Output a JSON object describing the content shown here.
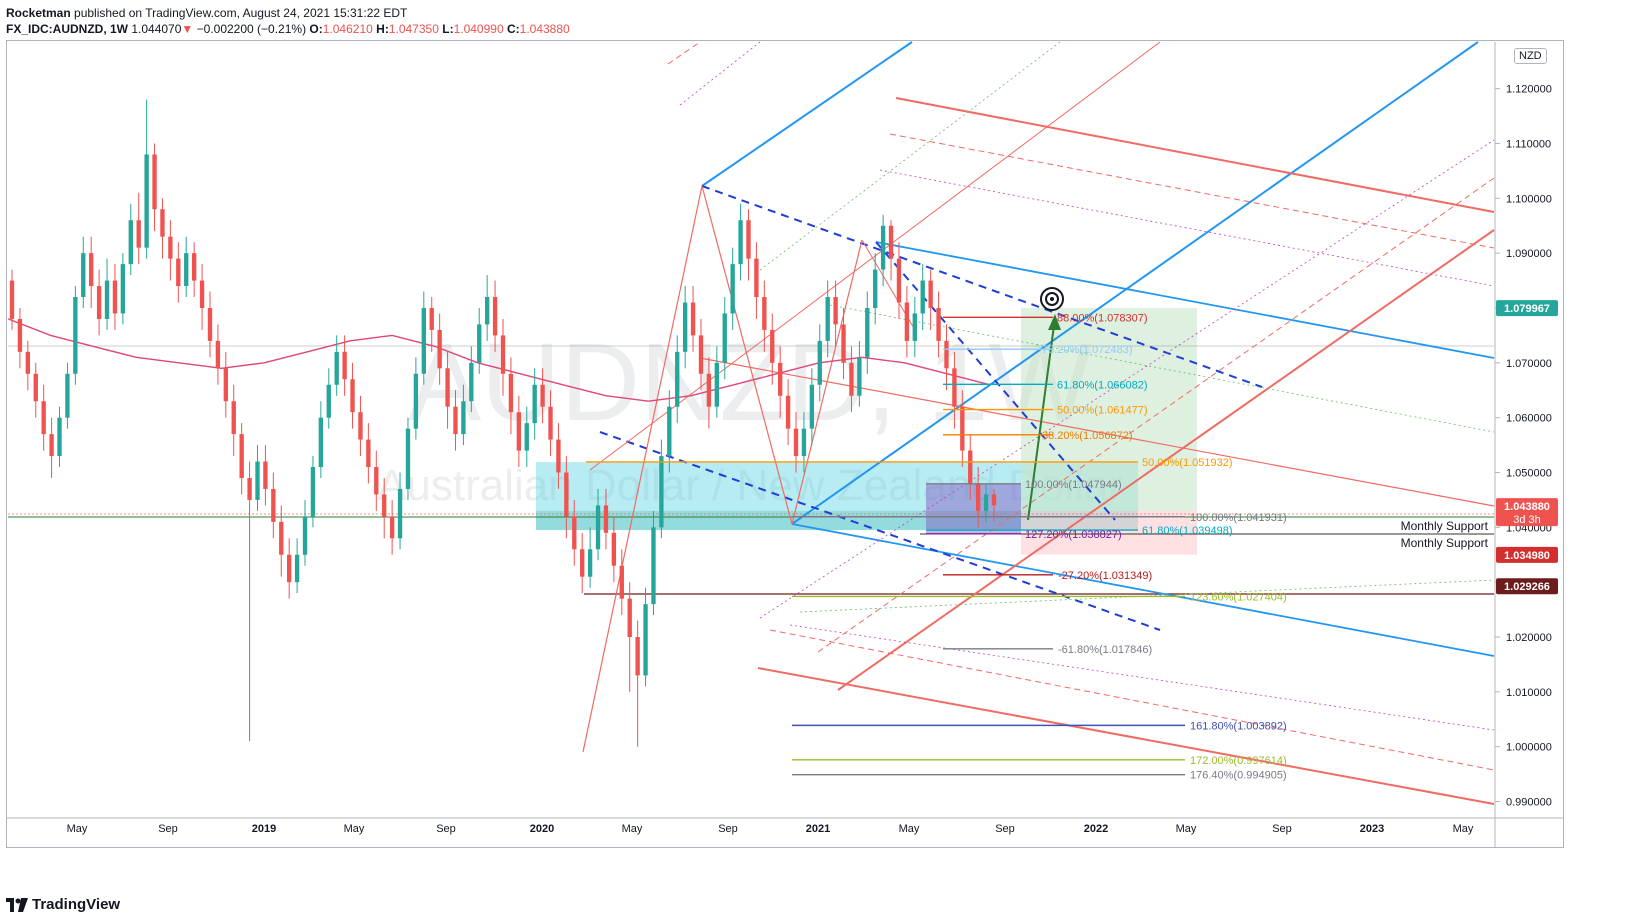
{
  "header": {
    "author": "Rocketman",
    "published": "published on TradingView.com, August 24, 2021 15:31:22 EDT",
    "symbol": "FX_IDC:AUDNZD, 1W",
    "last": "1.044070",
    "change": "−0.002200 (−0.21%)",
    "o_label": "O:",
    "o": "1.046210",
    "h_label": "H:",
    "h": "1.047350",
    "l_label": "L:",
    "l": "1.040990",
    "c_label": "C:",
    "c": "1.043880"
  },
  "watermark": {
    "symbol": "AUDNZD, 1W",
    "name": "Australian Dollar / New Zealand Dollar"
  },
  "currency_badge": "NZD",
  "footer": {
    "brand": "TradingView"
  },
  "colors": {
    "up": "#26a69a",
    "down": "#ef5350",
    "blue": "#2196f3",
    "red": "#f06b63",
    "ma": "#e0457b",
    "navy": "#1e3ed6",
    "green": "#2e7d32",
    "axis_text": "#131722"
  },
  "chart_data": {
    "type": "candlestick",
    "x_ticks": [
      "May",
      "Sep",
      "2019",
      "May",
      "Sep",
      "2020",
      "May",
      "Sep",
      "2021",
      "May",
      "Sep",
      "2022",
      "May",
      "Sep",
      "2023",
      "May"
    ],
    "y_ticks": [
      "1.120000",
      "1.110000",
      "1.100000",
      "1.090000",
      "1.080000",
      "1.070000",
      "1.060000",
      "1.050000",
      "1.040000",
      "1.030000",
      "1.020000",
      "1.010000",
      "1.000000",
      "0.990000"
    ],
    "y_range": [
      0.987,
      1.1285
    ],
    "price_labels": [
      {
        "value": "1.079967",
        "price": 1.079967,
        "color": "#26a69a"
      },
      {
        "value": "1.043880",
        "price": 1.04388,
        "color": "#ef5350",
        "sub": "3d 3h"
      },
      {
        "value": "1.034980",
        "price": 1.03498,
        "color": "#d32f2f"
      },
      {
        "value": "1.029266",
        "price": 1.029266,
        "color": "#6d1b1b"
      }
    ],
    "candles_weekly_approx": [
      [
        1.085,
        1.078,
        1.087,
        1.076
      ],
      [
        1.078,
        1.072,
        1.08,
        1.069
      ],
      [
        1.072,
        1.068,
        1.074,
        1.065
      ],
      [
        1.068,
        1.063,
        1.07,
        1.06
      ],
      [
        1.063,
        1.057,
        1.066,
        1.054
      ],
      [
        1.057,
        1.053,
        1.06,
        1.049
      ],
      [
        1.053,
        1.06,
        1.062,
        1.051
      ],
      [
        1.06,
        1.068,
        1.07,
        1.058
      ],
      [
        1.068,
        1.082,
        1.084,
        1.066
      ],
      [
        1.082,
        1.09,
        1.093,
        1.08
      ],
      [
        1.09,
        1.084,
        1.093,
        1.08
      ],
      [
        1.084,
        1.078,
        1.087,
        1.075
      ],
      [
        1.078,
        1.085,
        1.089,
        1.076
      ],
      [
        1.085,
        1.079,
        1.088,
        1.076
      ],
      [
        1.079,
        1.088,
        1.09,
        1.077
      ],
      [
        1.088,
        1.096,
        1.099,
        1.086
      ],
      [
        1.096,
        1.091,
        1.101,
        1.088
      ],
      [
        1.091,
        1.108,
        1.118,
        1.089
      ],
      [
        1.108,
        1.098,
        1.11,
        1.094
      ],
      [
        1.098,
        1.093,
        1.1,
        1.089
      ],
      [
        1.093,
        1.089,
        1.096,
        1.085
      ],
      [
        1.089,
        1.084,
        1.092,
        1.081
      ],
      [
        1.084,
        1.09,
        1.093,
        1.082
      ],
      [
        1.09,
        1.085,
        1.092,
        1.082
      ],
      [
        1.085,
        1.08,
        1.088,
        1.076
      ],
      [
        1.08,
        1.074,
        1.083,
        1.071
      ],
      [
        1.074,
        1.069,
        1.077,
        1.066
      ],
      [
        1.069,
        1.063,
        1.072,
        1.06
      ],
      [
        1.063,
        1.057,
        1.066,
        1.053
      ],
      [
        1.057,
        1.049,
        1.059,
        1.046
      ],
      [
        1.049,
        1.045,
        1.052,
        1.001
      ],
      [
        1.045,
        1.052,
        1.055,
        1.043
      ],
      [
        1.052,
        1.047,
        1.055,
        1.044
      ],
      [
        1.047,
        1.041,
        1.05,
        1.038
      ],
      [
        1.041,
        1.035,
        1.044,
        1.031
      ],
      [
        1.035,
        1.03,
        1.038,
        1.027
      ],
      [
        1.03,
        1.035,
        1.038,
        1.028
      ],
      [
        1.035,
        1.042,
        1.045,
        1.033
      ],
      [
        1.042,
        1.051,
        1.053,
        1.04
      ],
      [
        1.051,
        1.06,
        1.063,
        1.049
      ],
      [
        1.06,
        1.066,
        1.069,
        1.058
      ],
      [
        1.066,
        1.072,
        1.075,
        1.064
      ],
      [
        1.072,
        1.067,
        1.075,
        1.064
      ],
      [
        1.067,
        1.061,
        1.07,
        1.058
      ],
      [
        1.061,
        1.056,
        1.064,
        1.053
      ],
      [
        1.056,
        1.051,
        1.059,
        1.048
      ],
      [
        1.051,
        1.046,
        1.054,
        1.043
      ],
      [
        1.046,
        1.042,
        1.049,
        1.038
      ],
      [
        1.042,
        1.038,
        1.045,
        1.035
      ],
      [
        1.038,
        1.047,
        1.05,
        1.036
      ],
      [
        1.047,
        1.058,
        1.06,
        1.045
      ],
      [
        1.058,
        1.068,
        1.071,
        1.056
      ],
      [
        1.068,
        1.08,
        1.083,
        1.066
      ],
      [
        1.08,
        1.076,
        1.082,
        1.072
      ],
      [
        1.076,
        1.069,
        1.079,
        1.066
      ],
      [
        1.069,
        1.062,
        1.072,
        1.058
      ],
      [
        1.062,
        1.057,
        1.065,
        1.054
      ],
      [
        1.057,
        1.063,
        1.066,
        1.055
      ],
      [
        1.063,
        1.07,
        1.073,
        1.061
      ],
      [
        1.07,
        1.077,
        1.08,
        1.068
      ],
      [
        1.077,
        1.082,
        1.086,
        1.074
      ],
      [
        1.082,
        1.075,
        1.085,
        1.072
      ],
      [
        1.075,
        1.068,
        1.078,
        1.064
      ],
      [
        1.068,
        1.061,
        1.071,
        1.057
      ],
      [
        1.061,
        1.054,
        1.064,
        1.051
      ],
      [
        1.054,
        1.059,
        1.062,
        1.051
      ],
      [
        1.059,
        1.066,
        1.069,
        1.056
      ],
      [
        1.066,
        1.062,
        1.069,
        1.059
      ],
      [
        1.062,
        1.056,
        1.065,
        1.053
      ],
      [
        1.056,
        1.05,
        1.059,
        1.047
      ],
      [
        1.05,
        1.042,
        1.053,
        1.038
      ],
      [
        1.042,
        1.036,
        1.045,
        1.033
      ],
      [
        1.036,
        1.031,
        1.039,
        1.028
      ],
      [
        1.031,
        1.036,
        1.04,
        1.029
      ],
      [
        1.036,
        1.044,
        1.047,
        1.034
      ],
      [
        1.044,
        1.039,
        1.047,
        1.036
      ],
      [
        1.039,
        1.033,
        1.042,
        1.03
      ],
      [
        1.033,
        1.027,
        1.036,
        1.024
      ],
      [
        1.027,
        1.02,
        1.03,
        1.01
      ],
      [
        1.02,
        1.013,
        1.023,
        1.0
      ],
      [
        1.013,
        1.026,
        1.029,
        1.011
      ],
      [
        1.026,
        1.04,
        1.043,
        1.024
      ],
      [
        1.04,
        1.053,
        1.056,
        1.038
      ],
      [
        1.053,
        1.062,
        1.065,
        1.05
      ],
      [
        1.062,
        1.072,
        1.075,
        1.059
      ],
      [
        1.072,
        1.081,
        1.084,
        1.069
      ],
      [
        1.081,
        1.075,
        1.084,
        1.072
      ],
      [
        1.075,
        1.068,
        1.078,
        1.065
      ],
      [
        1.068,
        1.062,
        1.071,
        1.058
      ],
      [
        1.062,
        1.07,
        1.073,
        1.06
      ],
      [
        1.07,
        1.079,
        1.082,
        1.067
      ],
      [
        1.079,
        1.088,
        1.091,
        1.076
      ],
      [
        1.088,
        1.096,
        1.099,
        1.085
      ],
      [
        1.096,
        1.089,
        1.098,
        1.085
      ],
      [
        1.089,
        1.082,
        1.092,
        1.078
      ],
      [
        1.082,
        1.076,
        1.085,
        1.072
      ],
      [
        1.076,
        1.07,
        1.079,
        1.066
      ],
      [
        1.07,
        1.064,
        1.073,
        1.06
      ],
      [
        1.064,
        1.058,
        1.067,
        1.055
      ],
      [
        1.058,
        1.053,
        1.061,
        1.05
      ],
      [
        1.053,
        1.058,
        1.061,
        1.05
      ],
      [
        1.058,
        1.066,
        1.069,
        1.055
      ],
      [
        1.066,
        1.074,
        1.077,
        1.063
      ],
      [
        1.074,
        1.082,
        1.085,
        1.071
      ],
      [
        1.082,
        1.077,
        1.085,
        1.073
      ],
      [
        1.077,
        1.07,
        1.08,
        1.067
      ],
      [
        1.07,
        1.064,
        1.073,
        1.061
      ],
      [
        1.064,
        1.071,
        1.074,
        1.062
      ],
      [
        1.071,
        1.08,
        1.083,
        1.068
      ],
      [
        1.08,
        1.087,
        1.09,
        1.077
      ],
      [
        1.087,
        1.095,
        1.097,
        1.084
      ],
      [
        1.095,
        1.089,
        1.096,
        1.085
      ],
      [
        1.089,
        1.081,
        1.092,
        1.078
      ],
      [
        1.081,
        1.074,
        1.084,
        1.071
      ],
      [
        1.074,
        1.079,
        1.082,
        1.071
      ],
      [
        1.079,
        1.085,
        1.088,
        1.076
      ],
      [
        1.085,
        1.08,
        1.087,
        1.076
      ],
      [
        1.08,
        1.074,
        1.083,
        1.071
      ],
      [
        1.074,
        1.069,
        1.077,
        1.065
      ],
      [
        1.069,
        1.062,
        1.072,
        1.058
      ],
      [
        1.062,
        1.054,
        1.065,
        1.051
      ],
      [
        1.054,
        1.048,
        1.057,
        1.045
      ],
      [
        1.048,
        1.043,
        1.051,
        1.04
      ],
      [
        1.043,
        1.046,
        1.048,
        1.041
      ],
      [
        1.046,
        1.044,
        1.047,
        1.041
      ]
    ],
    "ma_values_approx": [
      1.078,
      1.075,
      1.073,
      1.071,
      1.07,
      1.069,
      1.07,
      1.072,
      1.074,
      1.075,
      1.073,
      1.07,
      1.068,
      1.066,
      1.064,
      1.063,
      1.064,
      1.066,
      1.068,
      1.07,
      1.071,
      1.07,
      1.068,
      1.066
    ],
    "fib_labels": [
      {
        "text": "88.00%(1.078307)",
        "price": 1.078307,
        "color": "#d32f2f"
      },
      {
        "text": "78.20%(1.072483)",
        "price": 1.072483,
        "color": "#90caf9"
      },
      {
        "text": "61.80%(1.066082)",
        "price": 1.066082,
        "color": "#00acc1"
      },
      {
        "text": "50.00%(1.061477)",
        "price": 1.061477,
        "color": "#ff9800"
      },
      {
        "text": "38.20%(1.056872)",
        "price": 1.056872,
        "color": "#f57c00"
      },
      {
        "text": "50.00%(1.051932)",
        "price": 1.051932,
        "color": "#ff9800"
      },
      {
        "text": "100.00%(1.047944)",
        "price": 1.047944,
        "color": "#787b86"
      },
      {
        "text": "100.00%(1.041931)",
        "price": 1.041931,
        "color": "#787b86"
      },
      {
        "text": "61.80%(1.039498)",
        "price": 1.039498,
        "color": "#00acc1"
      },
      {
        "text": "127.20%(1.038827)",
        "price": 1.038827,
        "color": "#7b1fa2"
      },
      {
        "text": "-27.20%(1.031349)",
        "price": 1.031349,
        "color": "#b71c1c"
      },
      {
        "text": "123.60%(1.027404)",
        "price": 1.027404,
        "color": "#9bbd2a"
      },
      {
        "text": "-61.80%(1.017846)",
        "price": 1.017846,
        "color": "#787b86"
      },
      {
        "text": "161.80%(1.003892)",
        "price": 1.003892,
        "color": "#3f51b5"
      },
      {
        "text": "172.00%(0.997614)",
        "price": 0.997614,
        "color": "#9bbd2a"
      },
      {
        "text": "176.40%(0.994905)",
        "price": 0.994905,
        "color": "#787b86"
      }
    ],
    "annotations": [
      "Monthly Support",
      "Monthly Support"
    ]
  }
}
